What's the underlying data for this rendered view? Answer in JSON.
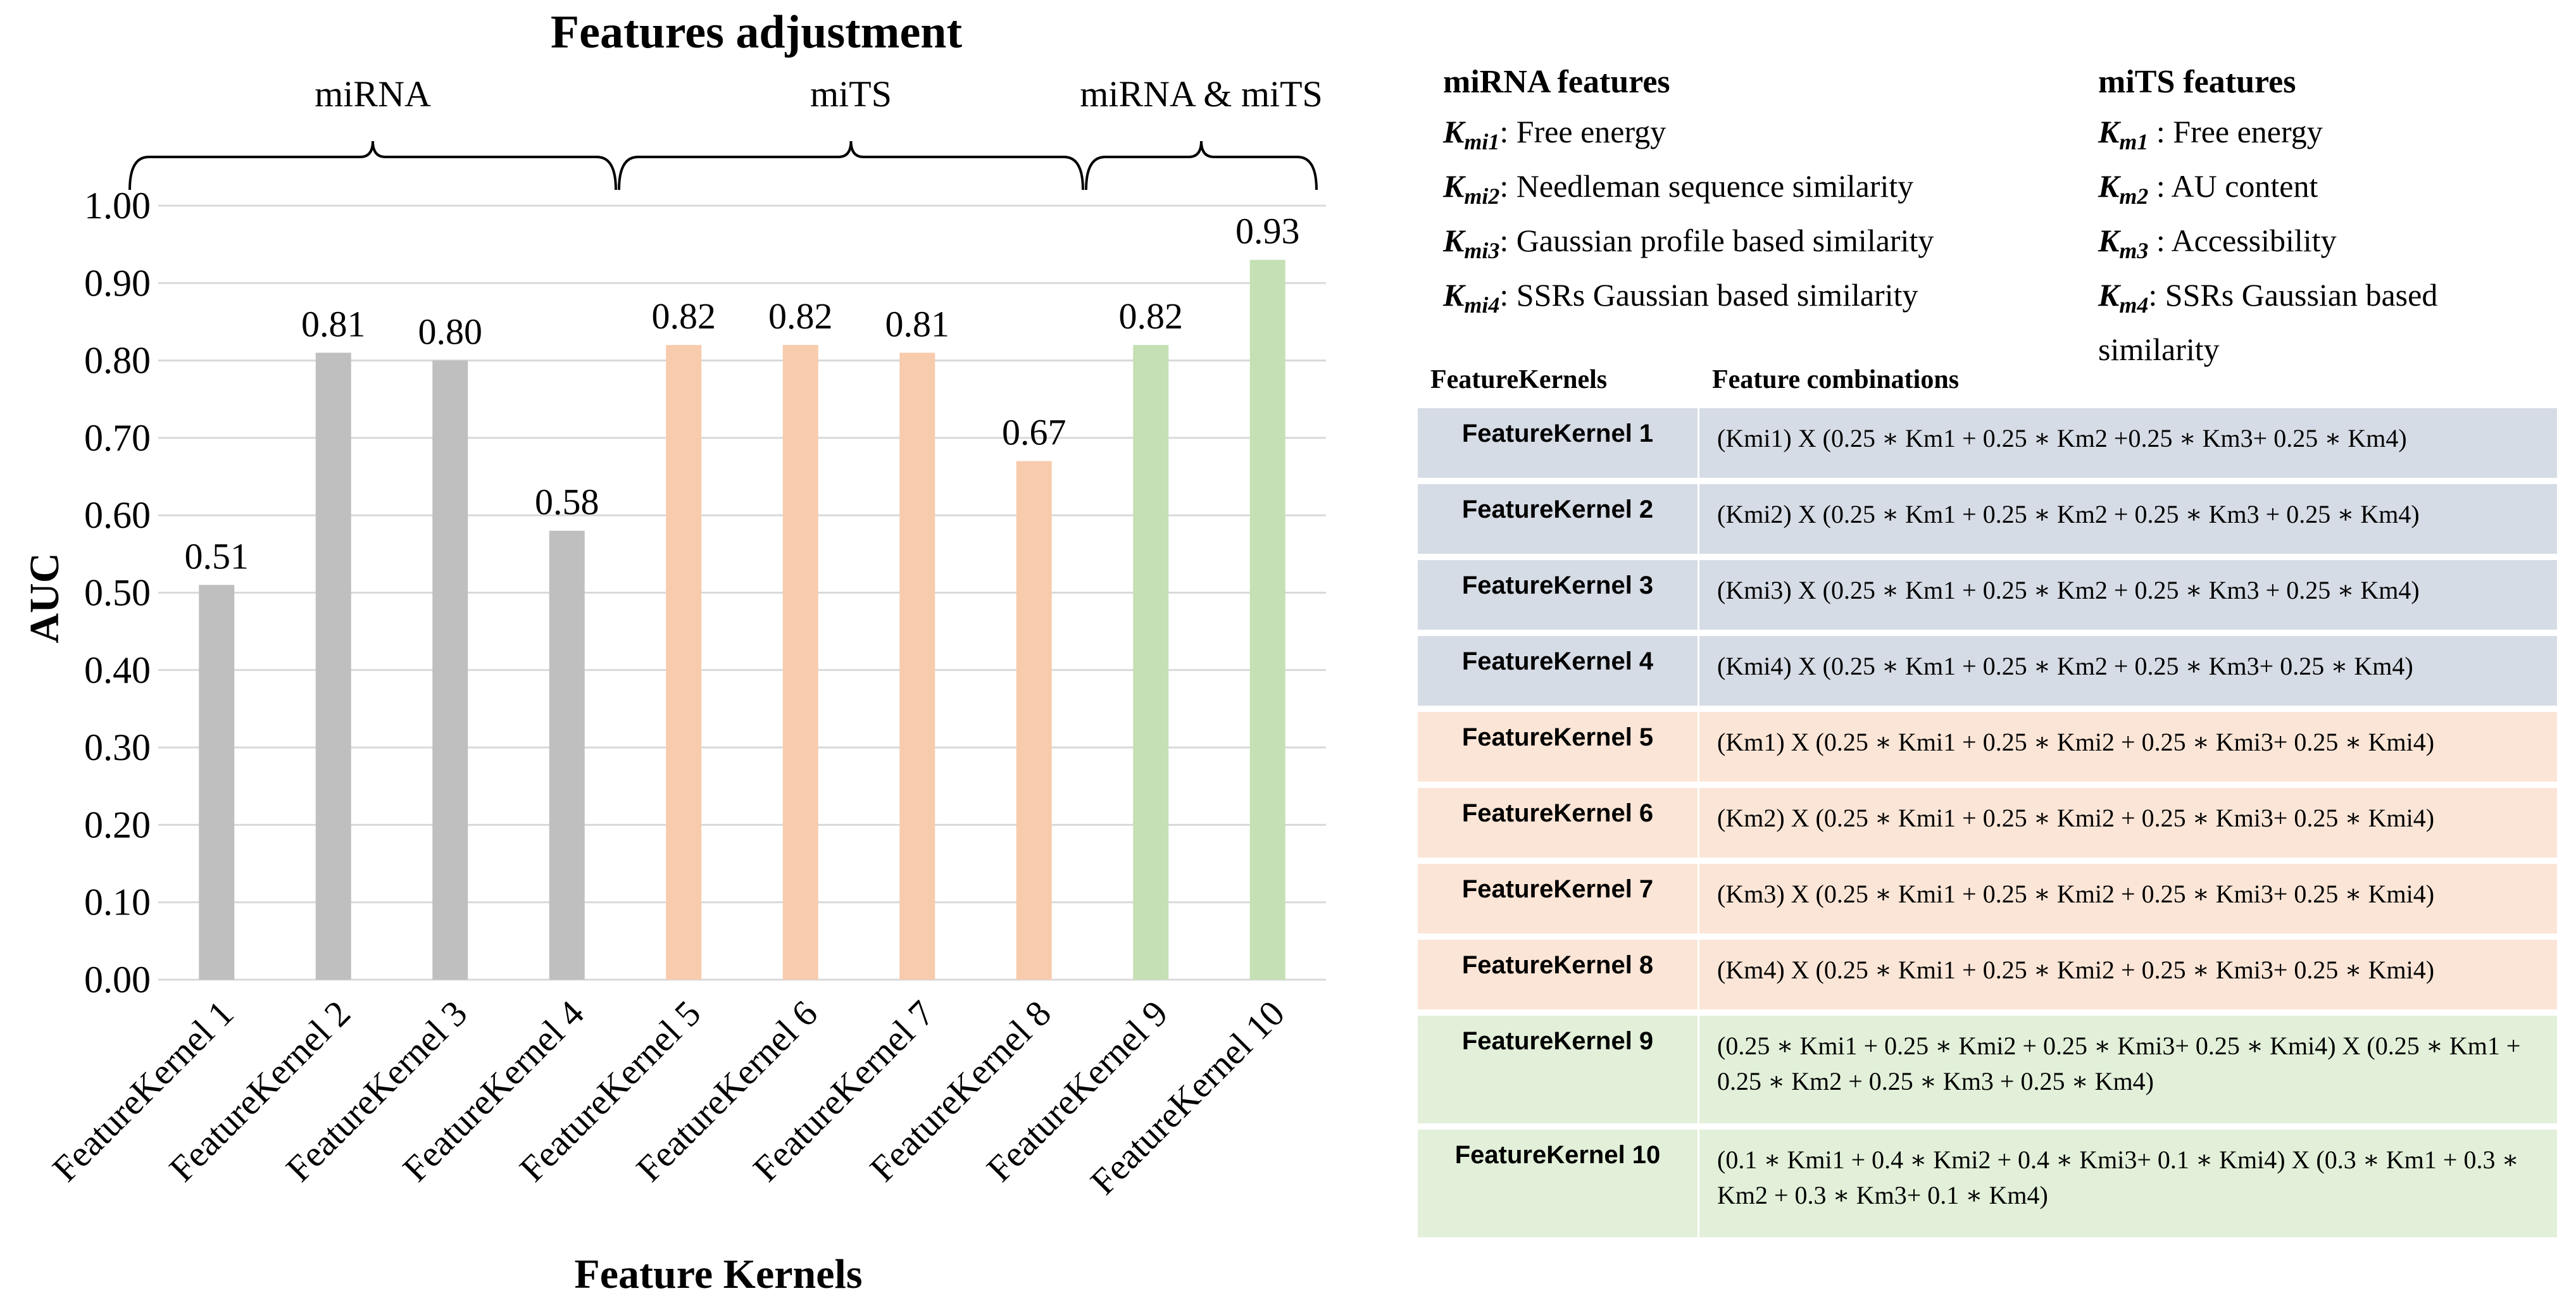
{
  "colors": {
    "grey": "#bfbfbf",
    "orange": "#f8cbad",
    "green": "#c5e0b4",
    "blue_row": "#d6dce5",
    "orange_row": "#fbe5d6",
    "green_row": "#e2f0d9"
  },
  "chart_data": {
    "type": "bar",
    "title": "Features adjustment",
    "xlabel": "Feature Kernels",
    "ylabel": "AUC",
    "ylim": [
      0,
      1.0
    ],
    "yticks": [
      "0.00",
      "0.10",
      "0.20",
      "0.30",
      "0.40",
      "0.50",
      "0.60",
      "0.70",
      "0.80",
      "0.90",
      "1.00"
    ],
    "categories": [
      "FeatureKernel 1",
      "FeatureKernel 2",
      "FeatureKernel 3",
      "FeatureKernel 4",
      "FeatureKernel 5",
      "FeatureKernel 6",
      "FeatureKernel 7",
      "FeatureKernel 8",
      "FeatureKernel 9",
      "FeatureKernel 10"
    ],
    "values": [
      0.51,
      0.81,
      0.8,
      0.58,
      0.82,
      0.82,
      0.81,
      0.67,
      0.82,
      0.93
    ],
    "data_labels": [
      "0.51",
      "0.81",
      "0.80",
      "0.58",
      "0.82",
      "0.82",
      "0.81",
      "0.67",
      "0.82",
      "0.93"
    ],
    "bar_colors": [
      "grey",
      "grey",
      "grey",
      "grey",
      "orange",
      "orange",
      "orange",
      "orange",
      "green",
      "green"
    ],
    "groups": [
      {
        "label": "miRNA",
        "from": 0,
        "to": 3
      },
      {
        "label": "miTS",
        "from": 4,
        "to": 7
      },
      {
        "label": "miRNA & miTS",
        "from": 8,
        "to": 9
      }
    ],
    "grid": true
  },
  "legend": {
    "mirna": {
      "title": "miRNA features",
      "items": [
        {
          "sym": "K",
          "sub": "mi1",
          "desc": ": Free energy"
        },
        {
          "sym": "K",
          "sub": "mi2",
          "desc": ": Needleman sequence similarity"
        },
        {
          "sym": "K",
          "sub": "mi3",
          "desc": ": Gaussian profile based similarity"
        },
        {
          "sym": "K",
          "sub": "mi4",
          "desc": ": SSRs Gaussian based similarity"
        }
      ]
    },
    "mits": {
      "title": "miTS features",
      "items": [
        {
          "sym": "K",
          "sub": "m1",
          "desc": " : Free energy"
        },
        {
          "sym": "K",
          "sub": "m2",
          "desc": " : AU content"
        },
        {
          "sym": "K",
          "sub": "m3",
          "desc": " : Accessibility"
        },
        {
          "sym": "K",
          "sub": "m4",
          "desc": ": SSRs Gaussian based similarity"
        }
      ]
    }
  },
  "table": {
    "headers": [
      "FeatureKernels",
      "Feature combinations"
    ],
    "rows": [
      {
        "name": "FeatureKernel 1",
        "formula": "(Kmi1) X  (0.25 ∗ Km1 +  0.25 ∗ Km2 +0.25 ∗ Km3+ 0.25 ∗ Km4)",
        "color": "blue_row"
      },
      {
        "name": "FeatureKernel 2",
        "formula": "(Kmi2) X  (0.25 ∗ Km1 +  0.25 ∗ Km2 + 0.25 ∗ Km3 + 0.25 ∗ Km4)",
        "color": "blue_row"
      },
      {
        "name": "FeatureKernel 3",
        "formula": "(Kmi3) X  (0.25 ∗ Km1 +  0.25 ∗ Km2 + 0.25 ∗ Km3 + 0.25 ∗ Km4)",
        "color": "blue_row"
      },
      {
        "name": "FeatureKernel 4",
        "formula": "(Kmi4) X  (0.25 ∗ Km1 +  0.25 ∗ Km2 + 0.25 ∗ Km3+ 0.25 ∗ Km4)",
        "color": "blue_row"
      },
      {
        "name": "FeatureKernel 5",
        "formula": "(Km1) X  (0.25 ∗ Kmi1 +  0.25 ∗ Kmi2 + 0.25 ∗ Kmi3+ 0.25 ∗ Kmi4)",
        "color": "orange_row"
      },
      {
        "name": "FeatureKernel 6",
        "formula": "(Km2) X  (0.25 ∗ Kmi1 +  0.25 ∗ Kmi2 + 0.25 ∗ Kmi3+ 0.25 ∗ Kmi4)",
        "color": "orange_row"
      },
      {
        "name": "FeatureKernel 7",
        "formula": "(Km3) X  (0.25 ∗ Kmi1 +  0.25 ∗ Kmi2 + 0.25 ∗ Kmi3+ 0.25 ∗ Kmi4)",
        "color": "orange_row"
      },
      {
        "name": "FeatureKernel 8",
        "formula": "(Km4) X  (0.25 ∗ Kmi1 +  0.25 ∗ Kmi2 + 0.25 ∗ Kmi3+ 0.25 ∗ Kmi4)",
        "color": "orange_row"
      },
      {
        "name": "FeatureKernel 9",
        "formula": "(0.25 ∗ Kmi1 +  0.25 ∗ Kmi2 + 0.25 ∗ Kmi3+ 0.25 ∗ Kmi4) X (0.25 ∗ Km1 +  0.25 ∗ Km2 + 0.25 ∗ Km3 + 0.25 ∗ Km4)",
        "color": "green_row"
      },
      {
        "name": "FeatureKernel 10",
        "formula": "(0.1 ∗ Kmi1 +  0.4 ∗ Kmi2 + 0.4 ∗ Kmi3+ 0.1 ∗ Kmi4) X  (0.3 ∗ Km1 +  0.3 ∗ Km2 + 0.3 ∗ Km3+ 0.1 ∗ Km4)",
        "color": "green_row"
      }
    ]
  }
}
